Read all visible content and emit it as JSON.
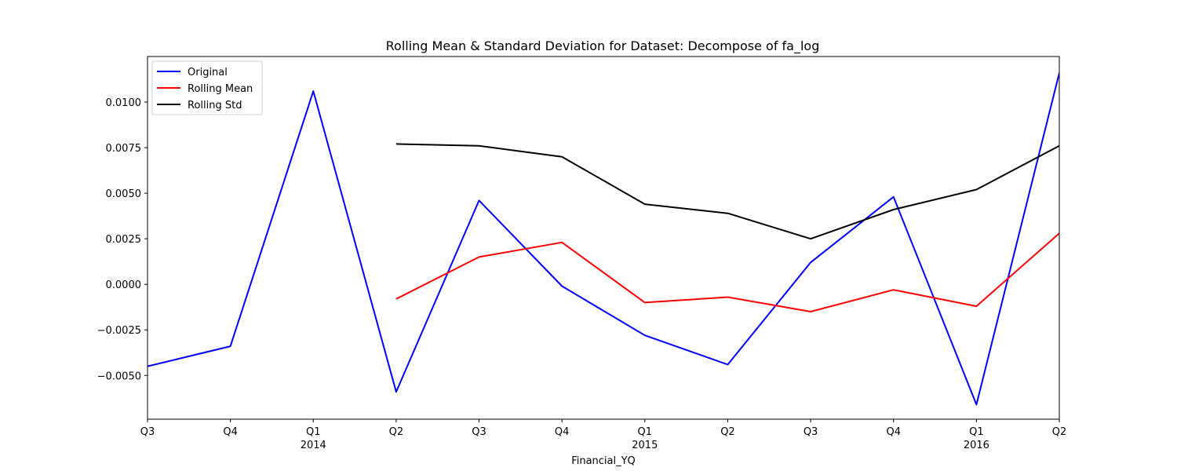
{
  "chart_data": {
    "type": "line",
    "title": "Rolling Mean & Standard Deviation for Dataset: Decompose of fa_log",
    "xlabel": "Financial_YQ",
    "ylabel": "",
    "x_ticks": [
      {
        "quarter": "Q3",
        "year": ""
      },
      {
        "quarter": "Q4",
        "year": ""
      },
      {
        "quarter": "Q1",
        "year": "2014"
      },
      {
        "quarter": "Q2",
        "year": ""
      },
      {
        "quarter": "Q3",
        "year": ""
      },
      {
        "quarter": "Q4",
        "year": ""
      },
      {
        "quarter": "Q1",
        "year": "2015"
      },
      {
        "quarter": "Q2",
        "year": ""
      },
      {
        "quarter": "Q3",
        "year": ""
      },
      {
        "quarter": "Q4",
        "year": ""
      },
      {
        "quarter": "Q1",
        "year": "2016"
      },
      {
        "quarter": "Q2",
        "year": ""
      }
    ],
    "y_ticks": [
      "0.0100",
      "0.0075",
      "0.0050",
      "0.0025",
      "0.0000",
      "−0.0025",
      "−0.0050"
    ],
    "y_tick_values": [
      0.01,
      0.0075,
      0.005,
      0.0025,
      0.0,
      -0.0025,
      -0.005
    ],
    "ylim": [
      -0.0074,
      0.0125
    ],
    "grid": false,
    "legend_position": "top-left",
    "series": [
      {
        "name": "Original",
        "color": "#0000ff",
        "values": [
          -0.0045,
          -0.0034,
          0.0106,
          -0.0059,
          0.0046,
          -0.0001,
          -0.0028,
          -0.0044,
          0.0012,
          0.0048,
          -0.0066,
          0.0116
        ]
      },
      {
        "name": "Rolling Mean",
        "color": "#ff0000",
        "values": [
          null,
          null,
          null,
          -0.0008,
          0.0015,
          0.0023,
          -0.001,
          -0.0007,
          -0.0015,
          -0.0003,
          -0.0012,
          0.0028
        ]
      },
      {
        "name": "Rolling Std",
        "color": "#000000",
        "values": [
          null,
          null,
          null,
          0.0077,
          0.0076,
          0.007,
          0.0044,
          0.0039,
          0.0025,
          0.0041,
          0.0052,
          0.0076
        ]
      }
    ]
  }
}
